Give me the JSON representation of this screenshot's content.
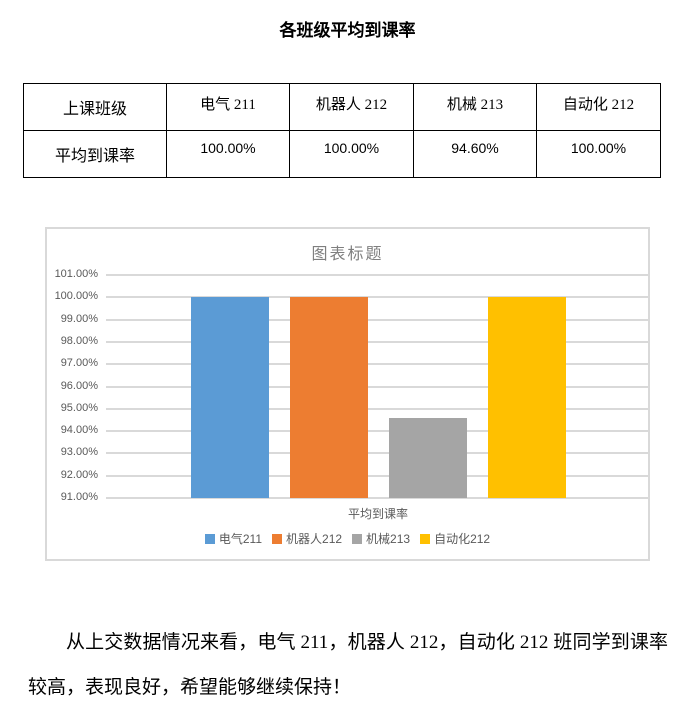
{
  "page": {
    "title": "各班级平均到课率"
  },
  "table": {
    "header_row_label": "上课班级",
    "value_row_label": "平均到课率",
    "columns": [
      "电气 211",
      "机器人 212",
      "机械 213",
      "自动化 212"
    ],
    "values": [
      "100.00%",
      "100.00%",
      "94.60%",
      "100.00%"
    ]
  },
  "chart_data": {
    "type": "bar",
    "title": "图表标题",
    "categories": [
      "平均到课率"
    ],
    "series": [
      {
        "name": "电气211",
        "color": "#5B9BD5",
        "values": [
          100.0
        ]
      },
      {
        "name": "机器人212",
        "color": "#ED7D31",
        "values": [
          100.0
        ]
      },
      {
        "name": "机械213",
        "color": "#A5A5A5",
        "values": [
          94.6
        ]
      },
      {
        "name": "自动化212",
        "color": "#FFC000",
        "values": [
          100.0
        ]
      }
    ],
    "ylabel": "",
    "xlabel": "平均到课率",
    "ylim": [
      91,
      101
    ],
    "ytick_step": 1,
    "ytick_format": "percent2",
    "grid": true,
    "legend_position": "bottom",
    "gridline_color": "#D9D9D9",
    "axis_text_color": "#595959",
    "title_color": "#7F7F7F"
  },
  "paragraph": {
    "text": "从上交数据情况来看，电气 211，机器人 212，自动化 212 班同学到课率较高，表现良好，希望能够继续保持！"
  }
}
